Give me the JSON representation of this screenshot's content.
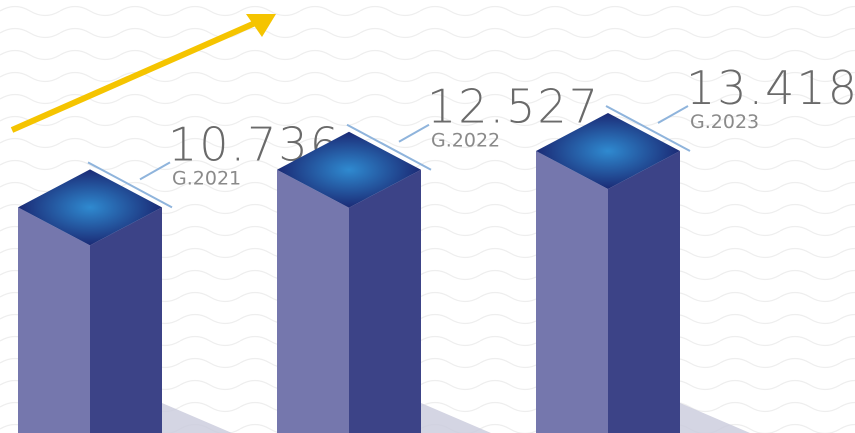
{
  "chart_data": {
    "type": "bar3d",
    "categories": [
      "G.2021",
      "G.2022",
      "G.2023"
    ],
    "values": [
      10.736,
      12.527,
      13.418
    ],
    "colors": {
      "left": "#7577ad",
      "right": "#3c4387",
      "top": "#1b2a75",
      "glow": "#2f8ad0",
      "line": "#8fb4dc"
    }
  }
}
